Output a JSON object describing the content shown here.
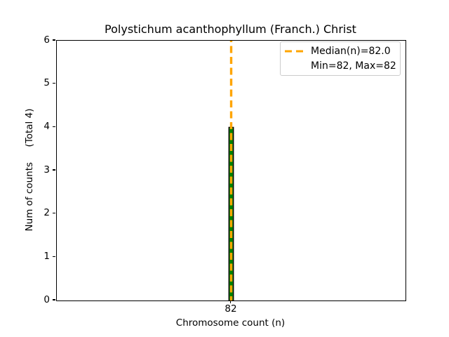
{
  "chart_data": {
    "type": "bar",
    "title": "Polystichum acanthophyllum (Franch.) Christ",
    "xlabel": "Chromosome count (n)",
    "ylabel": "Num of counts     (Total 4)",
    "categories": [
      "82"
    ],
    "values": [
      4
    ],
    "ylim": [
      0,
      6
    ],
    "yticks": [
      0,
      1,
      2,
      3,
      4,
      5,
      6
    ],
    "grid": false,
    "median_line": {
      "x": "82",
      "style": "dashed"
    },
    "legend": {
      "position": "upper right",
      "entries": [
        {
          "label": "Median(n)=82.0",
          "sample": "orange-dashed-line"
        },
        {
          "label": "Min=82, Max=82",
          "sample": "none"
        }
      ]
    },
    "colors": {
      "bar_fill": "#008000",
      "bar_edge": "#000000",
      "median_line": "#FFA500",
      "axes": "#000000",
      "legend_border": "#cccccc",
      "background": "#ffffff"
    }
  }
}
